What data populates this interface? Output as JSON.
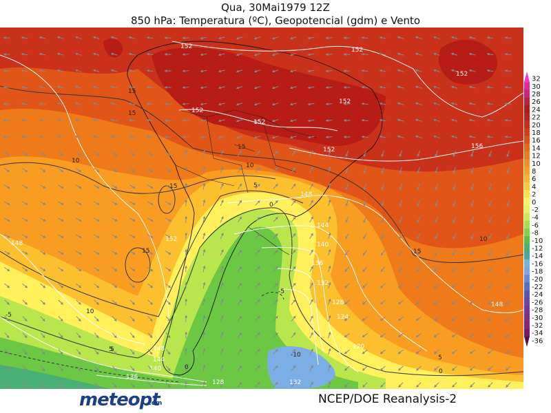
{
  "header": {
    "title_line1": "Qua, 30Mai1979 12Z",
    "title_line2": "850 hPa: Temperatura (ºC), Geopotencial (gdm) e Vento"
  },
  "footer": {
    "logo_text": "meteopt",
    "logo_suffix": ".com",
    "source": "NCEP/DOE  Reanalysis-2"
  },
  "colorbar": {
    "labels": [
      "32",
      "30",
      "28",
      "26",
      "24",
      "22",
      "20",
      "18",
      "16",
      "14",
      "12",
      "10",
      "8",
      "6",
      "4",
      "2",
      "0",
      "-2",
      "-4",
      "-6",
      "-8",
      "-10",
      "-12",
      "-14",
      "-16",
      "-18",
      "-20",
      "-22",
      "-24",
      "-26",
      "-28",
      "-30",
      "-32",
      "-34",
      "-36"
    ],
    "colors": [
      "#ff33cc",
      "#e8269a",
      "#d4207a",
      "#c01e3c",
      "#b81818",
      "#c41e18",
      "#d02a16",
      "#dc3a14",
      "#e44e14",
      "#ec6414",
      "#f07a18",
      "#f48e1c",
      "#f8a020",
      "#fab428",
      "#fcc830",
      "#fee040",
      "#fff060",
      "#e8f45a",
      "#c8ec50",
      "#a4e048",
      "#80d444",
      "#5cc040",
      "#48b070",
      "#4aa898",
      "#6eb6e0",
      "#7aa6e8",
      "#6a88d8",
      "#5a6ec8",
      "#5a54b8",
      "#6a44a8",
      "#7a3498",
      "#862a88",
      "#8e2278",
      "#7a1866",
      "#5a0e4a"
    ]
  },
  "map_labels": {
    "geopotential": [
      "152",
      "152",
      "152",
      "152",
      "152",
      "152",
      "152",
      "152",
      "148",
      "148",
      "148",
      "148",
      "144",
      "144",
      "140",
      "140",
      "136",
      "136",
      "132",
      "132",
      "128",
      "128",
      "124",
      "120",
      "156"
    ],
    "isotherms": [
      "15",
      "15",
      "15",
      "15",
      "15",
      "15",
      "10",
      "10",
      "10",
      "10",
      "5",
      "5",
      "5",
      "5",
      "0",
      "0",
      "0",
      "-5",
      "-5",
      "-10"
    ]
  }
}
